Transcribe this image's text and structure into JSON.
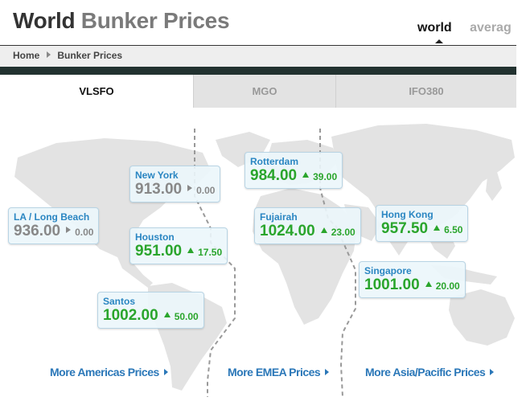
{
  "header": {
    "title_part1": "World",
    "title_part2": "Bunker Prices",
    "view_tabs": [
      {
        "label": "world",
        "active": true
      },
      {
        "label": "averag",
        "active": false
      }
    ]
  },
  "breadcrumb": {
    "home": "Home",
    "current": "Bunker Prices"
  },
  "fuel_tabs": [
    {
      "label": "VLSFO",
      "active": true
    },
    {
      "label": "MGO",
      "active": false
    },
    {
      "label": "IFO380",
      "active": false
    }
  ],
  "colors": {
    "up": "#2aa52c",
    "flat": "#888888",
    "port_name": "#2a86c2",
    "link": "#2a77b8",
    "dark_bar": "#223230"
  },
  "chart_data": {
    "type": "table",
    "unit": "",
    "columns": [
      "port",
      "price",
      "change",
      "direction"
    ],
    "rows": [
      {
        "port": "LA / Long Beach",
        "price": "936.00",
        "change": "0.00",
        "direction": "flat"
      },
      {
        "port": "New York",
        "price": "913.00",
        "change": "0.00",
        "direction": "flat"
      },
      {
        "port": "Houston",
        "price": "951.00",
        "change": "17.50",
        "direction": "up"
      },
      {
        "port": "Santos",
        "price": "1002.00",
        "change": "50.00",
        "direction": "up"
      },
      {
        "port": "Rotterdam",
        "price": "984.00",
        "change": "39.00",
        "direction": "up"
      },
      {
        "port": "Fujairah",
        "price": "1024.00",
        "change": "23.00",
        "direction": "up"
      },
      {
        "port": "Hong Kong",
        "price": "957.50",
        "change": "6.50",
        "direction": "up"
      },
      {
        "port": "Singapore",
        "price": "1001.00",
        "change": "20.00",
        "direction": "up"
      }
    ]
  },
  "region_links": [
    {
      "label": "More Americas Prices"
    },
    {
      "label": "More EMEA Prices"
    },
    {
      "label": "More Asia/Pacific Prices"
    }
  ]
}
